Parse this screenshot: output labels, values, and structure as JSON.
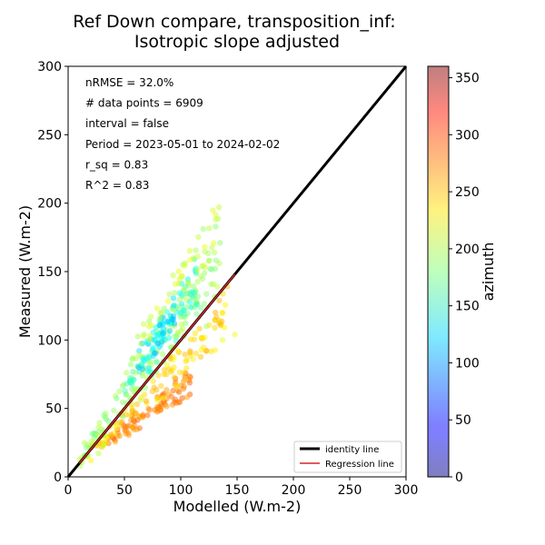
{
  "chart_data": {
    "type": "scatter",
    "title_line1": "Ref Down compare, transposition_inf:",
    "title_line2": "Isotropic slope adjusted",
    "xlabel": "Modelled (W.m-2)",
    "ylabel": "Measured (W.m-2)",
    "xlim": [
      0,
      300
    ],
    "ylim": [
      0,
      300
    ],
    "x_ticks": [
      "0",
      "50",
      "100",
      "150",
      "200",
      "250",
      "300"
    ],
    "y_ticks": [
      "0",
      "50",
      "100",
      "150",
      "200",
      "250",
      "300"
    ],
    "stats": [
      "nRMSE = 32.0%",
      "# data points = 6909",
      "interval = false",
      "Period = 2023-05-01 to 2024-02-02",
      "r_sq = 0.83",
      "R^2 = 0.83"
    ],
    "colorbar": {
      "label": "azimuth",
      "range": [
        0,
        360
      ],
      "ticks": [
        "0",
        "50",
        "100",
        "150",
        "200",
        "250",
        "300",
        "350"
      ],
      "cmap": "jet",
      "alpha": 0.5
    },
    "legend": {
      "placement": "lower-right",
      "entries": [
        {
          "label": "identity line",
          "color": "#000000"
        },
        {
          "label": "Regression line",
          "color": "#d62728"
        }
      ]
    },
    "identity_line": {
      "x": [
        0,
        300
      ],
      "y": [
        0,
        300
      ]
    },
    "regression_line": {
      "x": [
        10,
        148
      ],
      "y": [
        10,
        148
      ]
    },
    "point_groups": [
      {
        "name": "orange band (azimuth ~270)",
        "azimuth": 270,
        "count": 90,
        "x_range": [
          35,
          110
        ],
        "slope": 0.62,
        "offset": 3,
        "spread": 6
      },
      {
        "name": "yellow band (azimuth ~240)",
        "azimuth": 240,
        "count": 110,
        "x_range": [
          20,
          145
        ],
        "slope": 0.85,
        "offset": 0,
        "spread": 8
      },
      {
        "name": "green cloud (azimuth ~190)",
        "azimuth": 190,
        "count": 160,
        "x_range": [
          10,
          135
        ],
        "slope": 1.15,
        "offset": 2,
        "spread": 14
      },
      {
        "name": "cyan cloud (azimuth ~150)",
        "azimuth": 150,
        "count": 70,
        "x_range": [
          50,
          115
        ],
        "slope": 1.25,
        "offset": -2,
        "spread": 10
      },
      {
        "name": "blue cluster (azimuth ~125)",
        "azimuth": 125,
        "count": 45,
        "x_range": [
          62,
          95
        ],
        "slope": 1.3,
        "offset": -2,
        "spread": 9
      },
      {
        "name": "upper lime streak (azimuth ~205)",
        "azimuth": 205,
        "count": 50,
        "x_range": [
          60,
          135
        ],
        "slope": 1.35,
        "offset": 10,
        "spread": 10
      }
    ],
    "outliers": [
      {
        "x": 134,
        "y": 197,
        "azimuth": 205
      },
      {
        "x": 131,
        "y": 188,
        "azimuth": 210
      },
      {
        "x": 148,
        "y": 104,
        "azimuth": 220
      },
      {
        "x": 137,
        "y": 100,
        "azimuth": 215
      },
      {
        "x": 130,
        "y": 164,
        "azimuth": 200
      },
      {
        "x": 125,
        "y": 158,
        "azimuth": 195
      }
    ]
  }
}
